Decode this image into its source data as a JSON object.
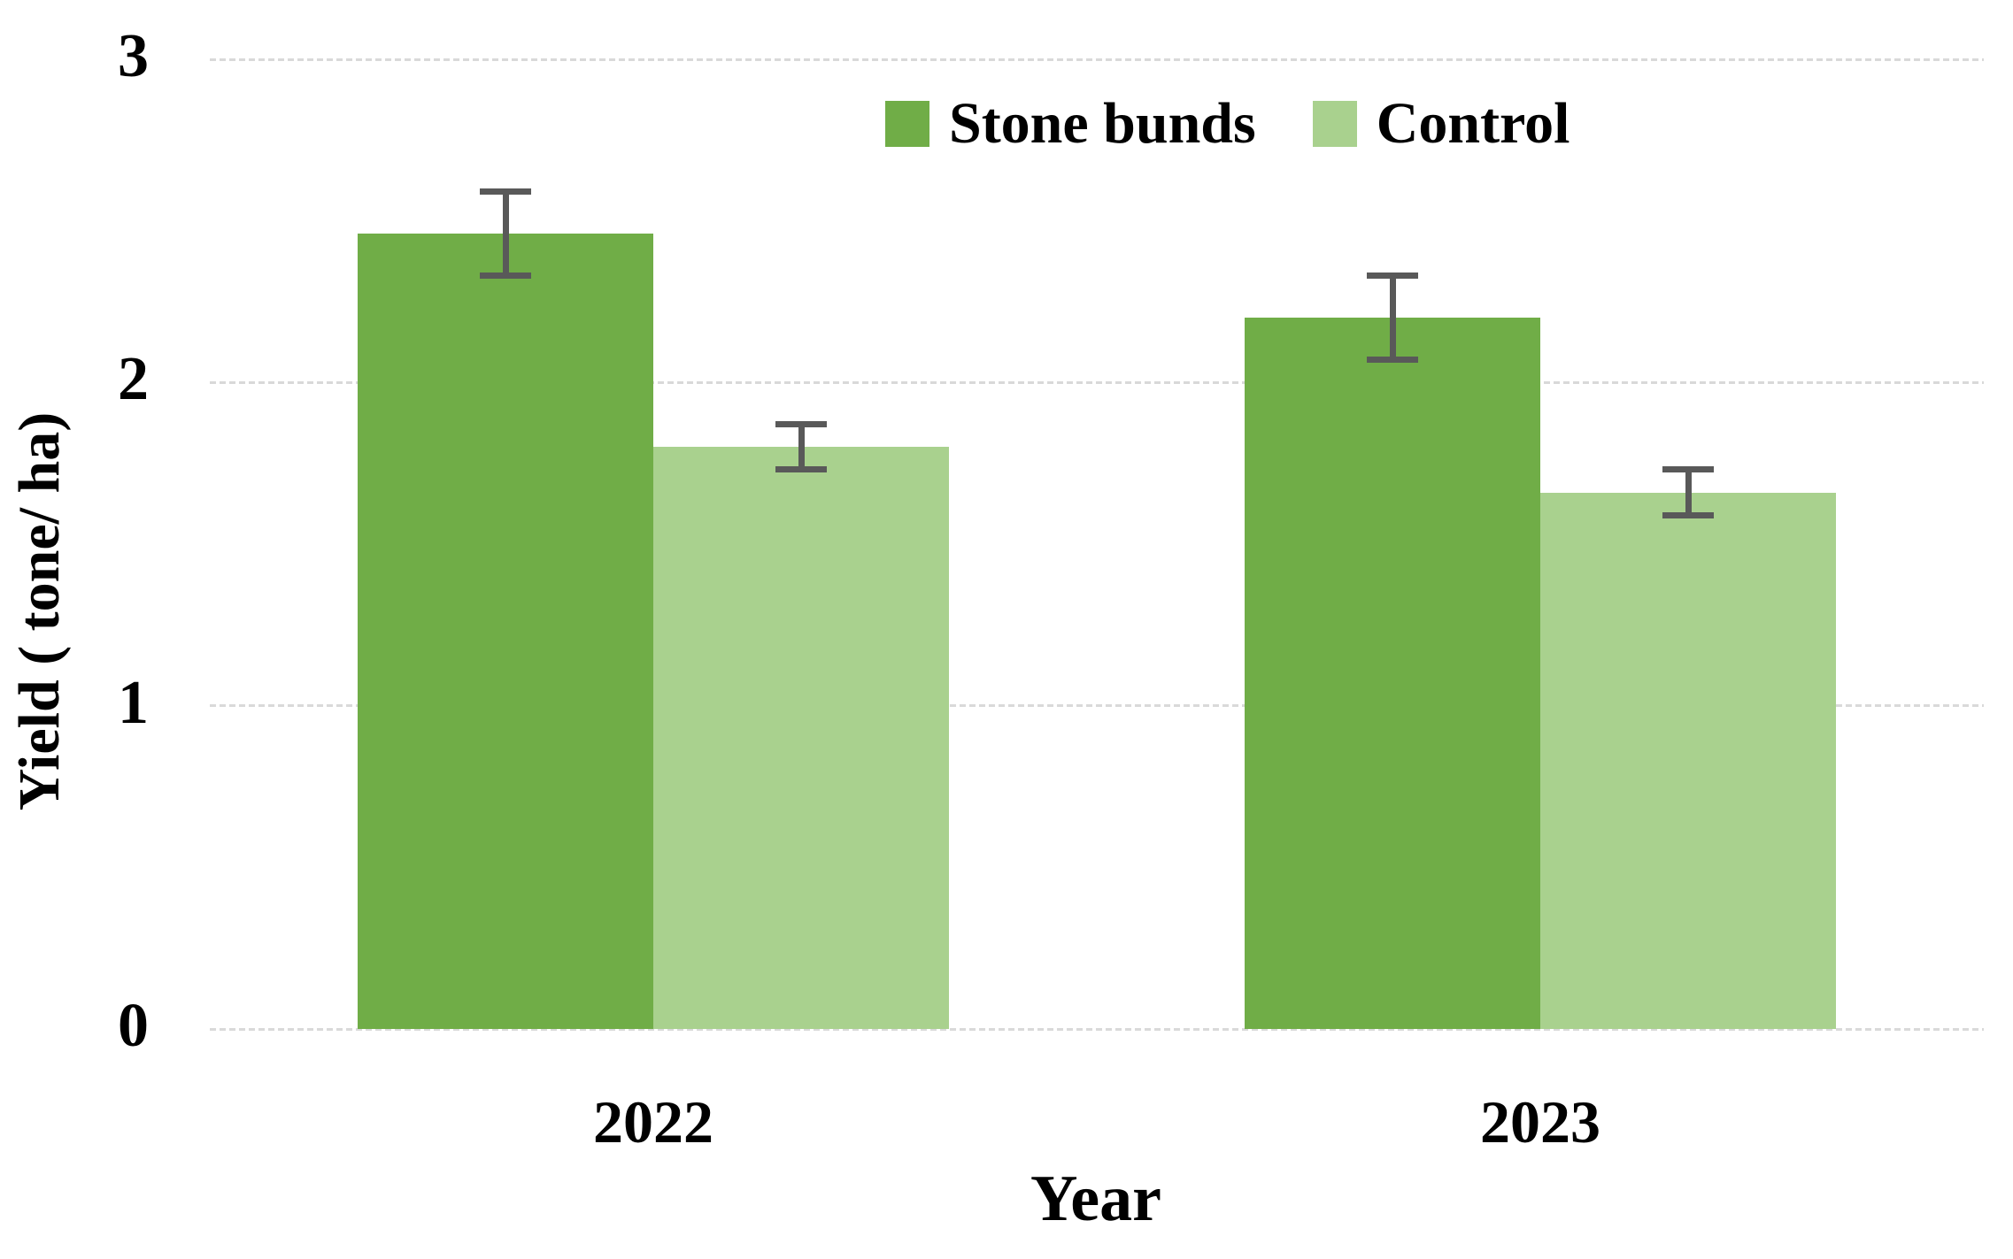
{
  "chart_data": {
    "type": "bar",
    "title": "",
    "xlabel": "Year",
    "ylabel": "Yield ( tone/ ha)",
    "categories": [
      "2022",
      "2023"
    ],
    "series": [
      {
        "name": "Stone bunds",
        "color": "#70ad47",
        "values": [
          2.46,
          2.2
        ],
        "errors": [
          0.13,
          0.13
        ]
      },
      {
        "name": "Control",
        "color": "#a9d18e",
        "values": [
          1.8,
          1.66
        ],
        "errors": [
          0.07,
          0.07
        ]
      }
    ],
    "ylim": [
      0,
      3
    ],
    "yticks": [
      0,
      1,
      2,
      3
    ],
    "grid": "horizontal dotted gridlines at each integer tick",
    "gridline_color": "#d9d9d9",
    "error_bar_color": "#595959",
    "legend_position": "top-center-inside",
    "background_color": "#ffffff",
    "text_color": "#000000"
  }
}
